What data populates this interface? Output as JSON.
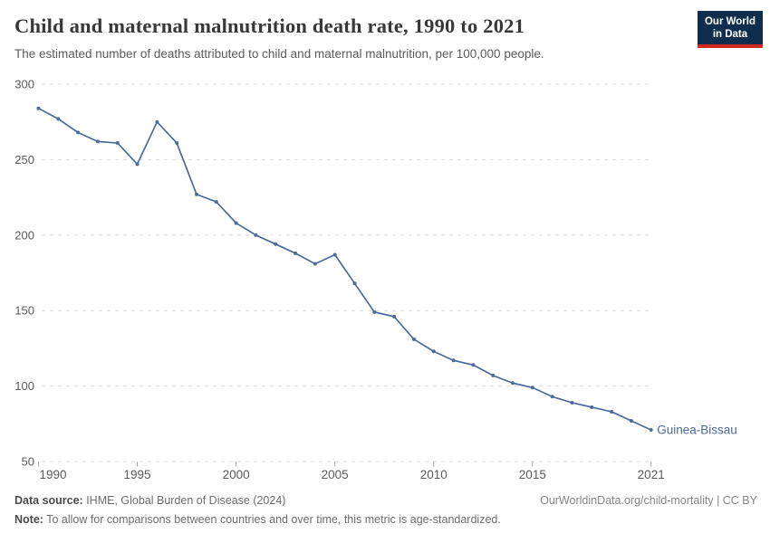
{
  "header": {
    "title": "Child and maternal malnutrition death rate, 1990 to 2021",
    "subtitle": "The estimated number of deaths attributed to child and maternal malnutrition, per 100,000 people.",
    "logo": {
      "line1": "Our World",
      "line2": "in Data",
      "bg_color": "#0f2e4e",
      "accent_color": "#ce2820"
    }
  },
  "chart_data": {
    "type": "line",
    "title": "Child and maternal malnutrition death rate, 1990 to 2021",
    "subtitle": "The estimated number of deaths attributed to child and maternal malnutrition, per 100,000 people.",
    "xlabel": "",
    "ylabel": "",
    "xlim": [
      1990,
      2021
    ],
    "ylim": [
      50,
      300
    ],
    "x_ticks": [
      1990,
      1995,
      2000,
      2005,
      2010,
      2015,
      2021
    ],
    "y_ticks": [
      50,
      100,
      150,
      200,
      250,
      300
    ],
    "grid": "horizontal-dashed",
    "legend_position": "end-of-line-label",
    "series": [
      {
        "name": "Guinea-Bissau",
        "color": "#4C6A9C",
        "x": [
          1990,
          1991,
          1992,
          1993,
          1994,
          1995,
          1996,
          1997,
          1998,
          1999,
          2000,
          2001,
          2002,
          2003,
          2004,
          2005,
          2006,
          2007,
          2008,
          2009,
          2010,
          2011,
          2012,
          2013,
          2014,
          2015,
          2016,
          2017,
          2018,
          2019,
          2020,
          2021
        ],
        "values": [
          284,
          277,
          268,
          262,
          261,
          247,
          275,
          261,
          227,
          222,
          208,
          200,
          194,
          188,
          181,
          187,
          168,
          149,
          146,
          131,
          123,
          117,
          114,
          107,
          102,
          99,
          93,
          89,
          86,
          83,
          77,
          71
        ]
      }
    ],
    "colors": {
      "gridline": "#dcdcdc",
      "axis_text": "#5b5b5b",
      "tick_mark": "#a5a5a5"
    }
  },
  "footer": {
    "datasource_label": "Data source:",
    "datasource_value": " IHME, Global Burden of Disease (2024)",
    "credit": "OurWorldinData.org/child-mortality | CC BY",
    "note_label": "Note:",
    "note_value": " To allow for comparisons between countries and over time, this metric is age-standardized."
  }
}
